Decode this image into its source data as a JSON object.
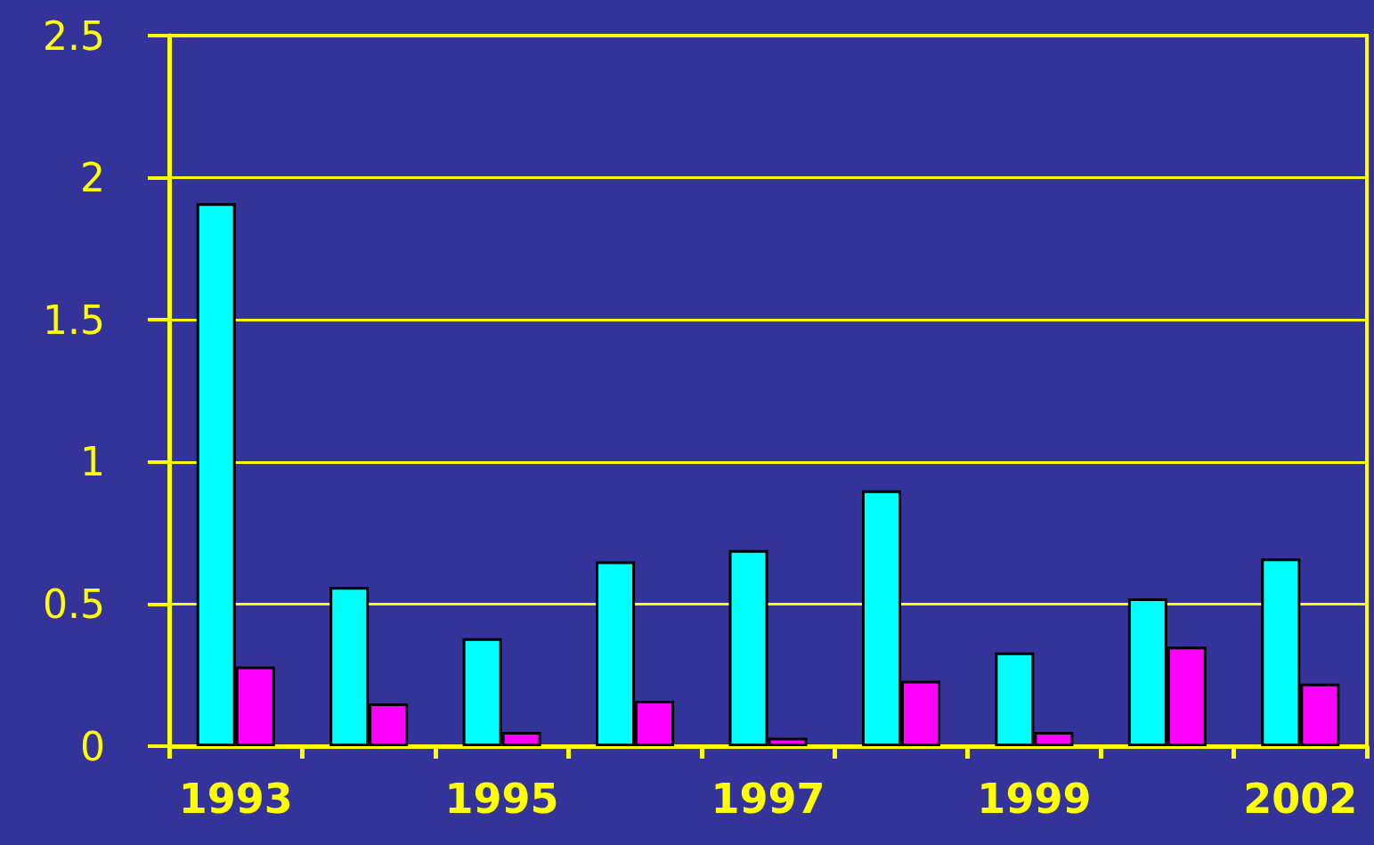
{
  "chart_data": {
    "type": "bar",
    "categories": [
      "1993",
      null,
      "1995",
      null,
      "1997",
      null,
      "1999",
      null,
      "2002"
    ],
    "series": [
      {
        "color": "#00ffff",
        "values": [
          1.91,
          0.56,
          0.38,
          0.65,
          0.69,
          0.9,
          0.33,
          0.52,
          0.66
        ]
      },
      {
        "color": "#ff00ff",
        "values": [
          0.28,
          0.15,
          0.05,
          0.16,
          0.03,
          0.23,
          0.05,
          0.35,
          0.22
        ]
      }
    ],
    "ylim": [
      0,
      2.5
    ],
    "yticks": [
      0,
      0.5,
      1,
      1.5,
      2,
      2.5
    ],
    "grid": "y"
  }
}
